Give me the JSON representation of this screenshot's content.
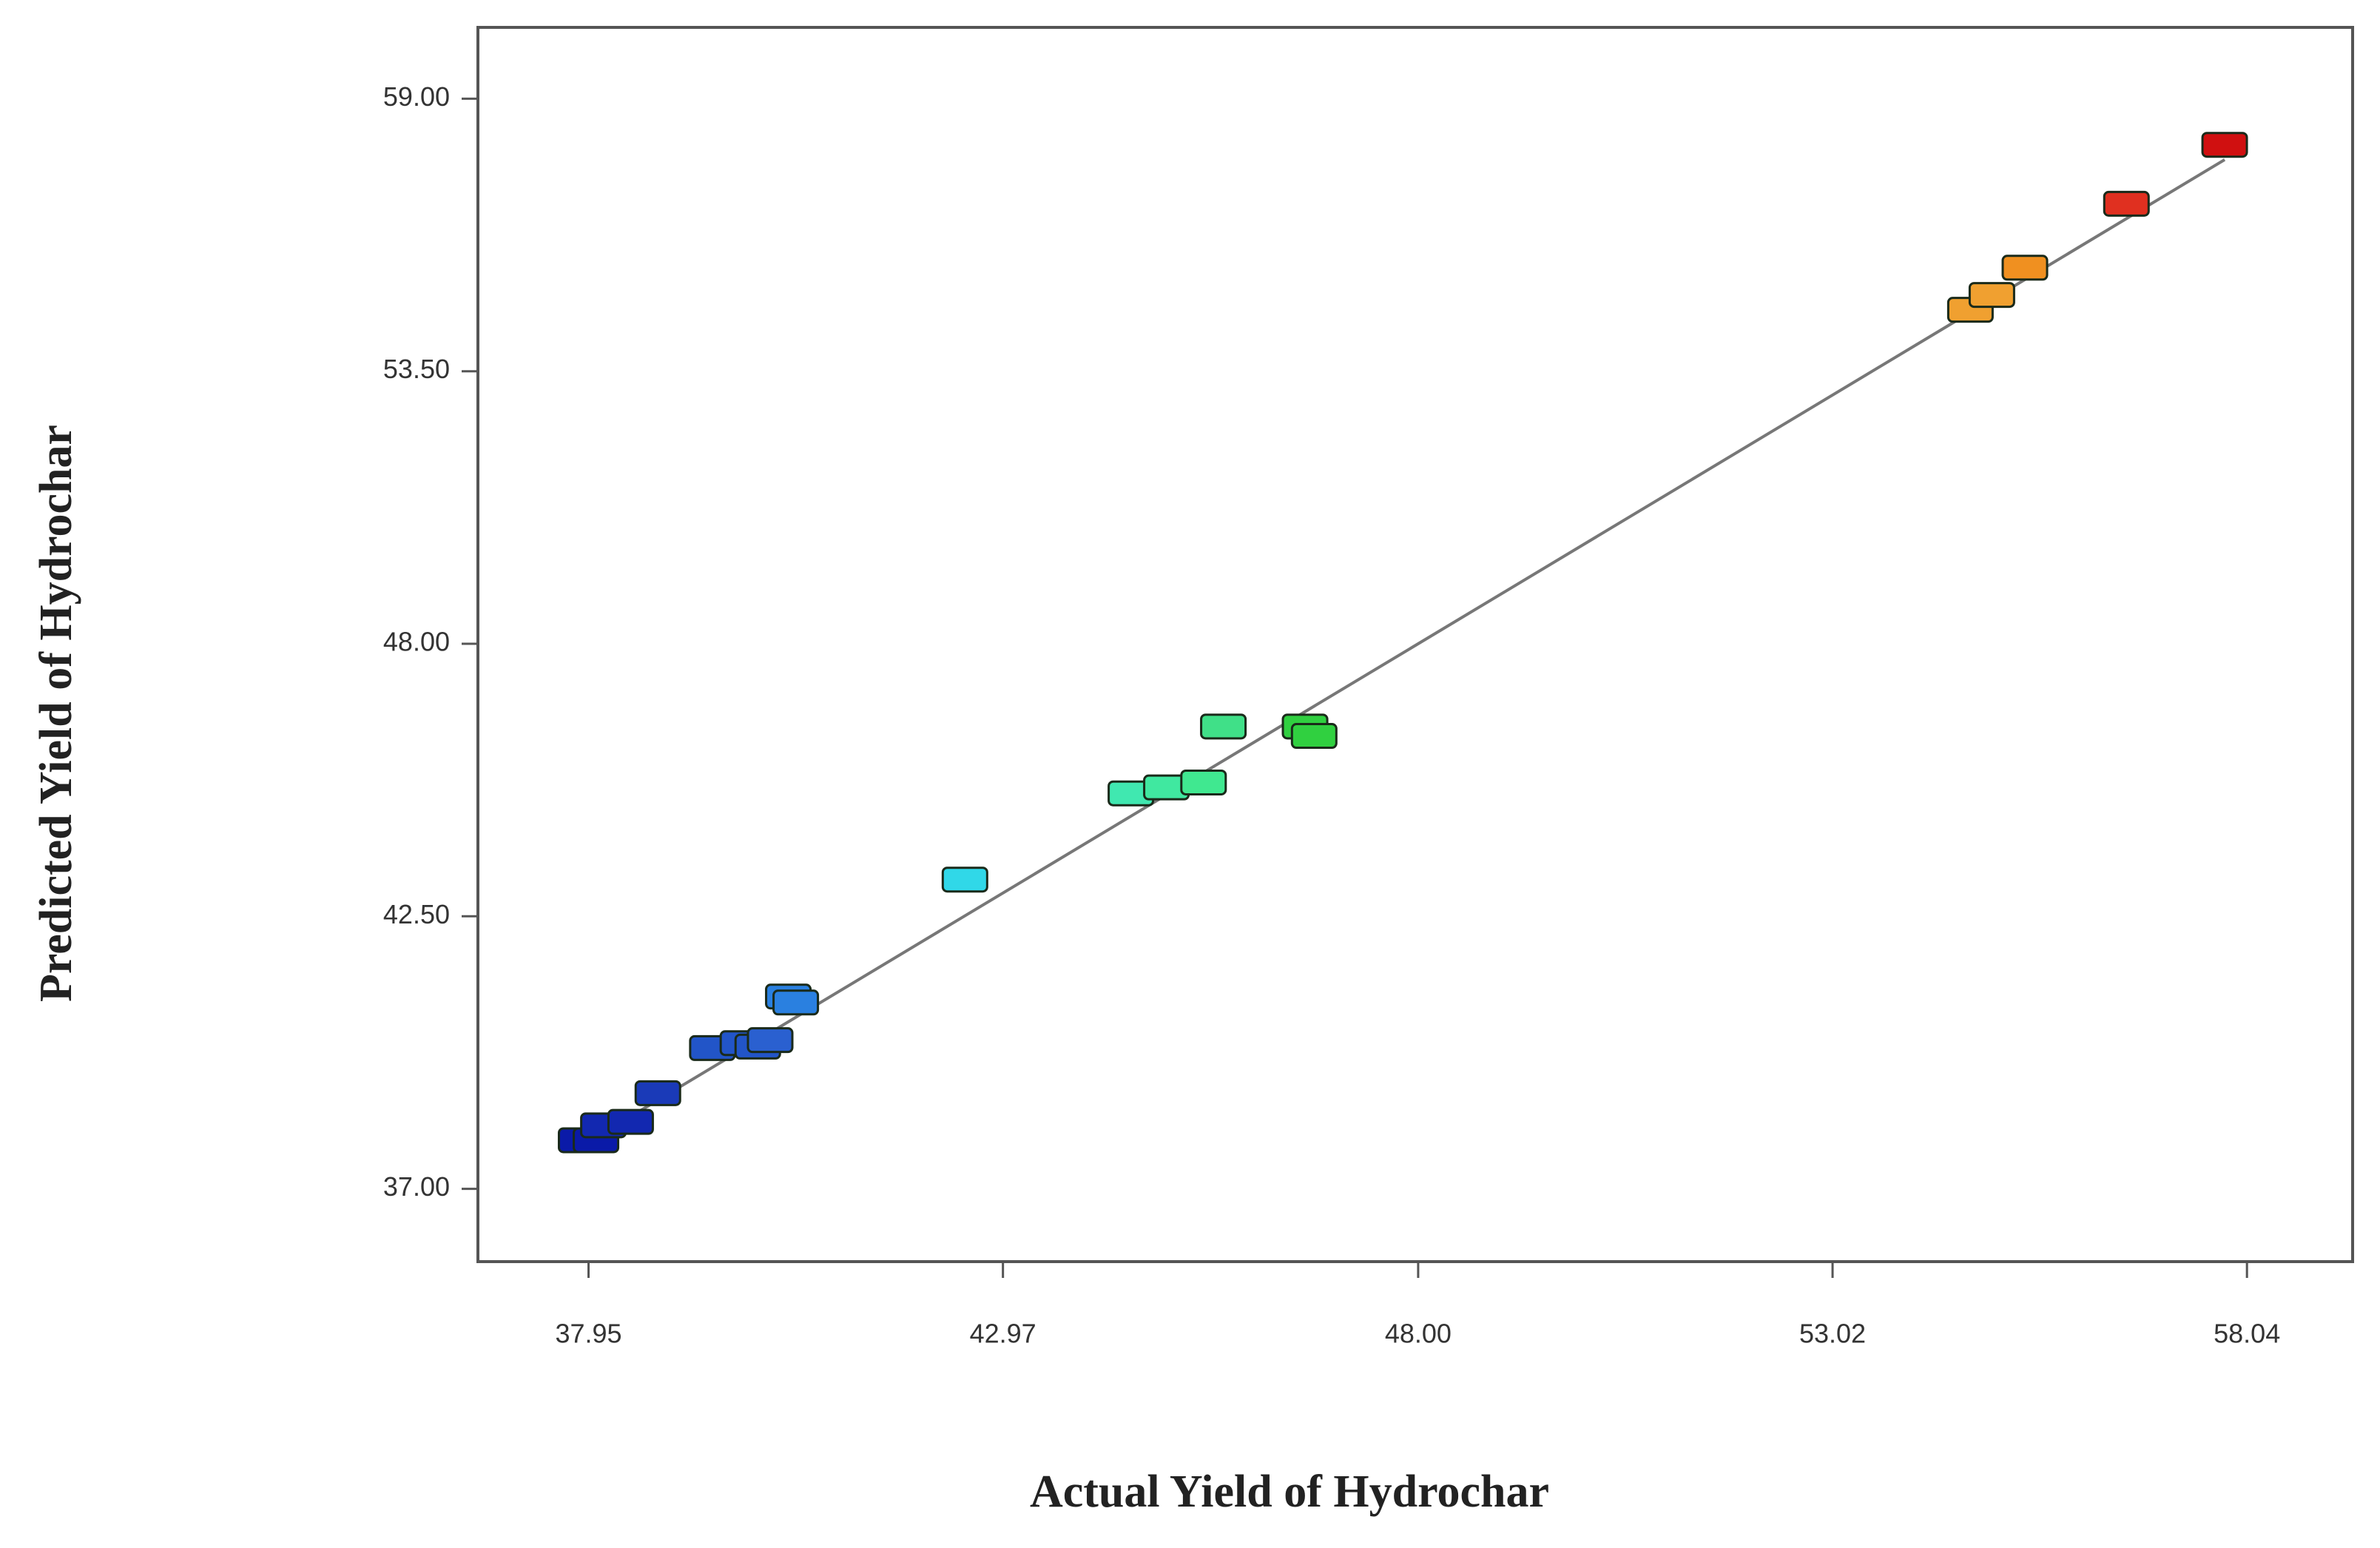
{
  "chart_data": {
    "type": "scatter",
    "x_label": "Actual Yield of Hydrochar",
    "y_label": "Predicted Yield of Hydrochar",
    "x": [
      37.86,
      38.04,
      38.13,
      38.46,
      38.79,
      39.45,
      39.82,
      40.0,
      40.15,
      40.37,
      40.46,
      42.51,
      44.52,
      44.95,
      45.4,
      45.64,
      46.63,
      46.74,
      54.69,
      54.95,
      55.35,
      56.58,
      57.77
    ],
    "values": [
      37.98,
      37.98,
      38.28,
      38.35,
      38.93,
      39.84,
      39.94,
      39.87,
      40.0,
      40.88,
      40.76,
      43.24,
      44.98,
      45.1,
      45.2,
      46.33,
      46.33,
      46.14,
      54.74,
      55.04,
      55.59,
      56.88,
      58.07
    ],
    "colors": [
      "#0a1aa8",
      "#0a1aa8",
      "#1228b0",
      "#1228b0",
      "#1a3ab8",
      "#2255c8",
      "#2255c8",
      "#2255c8",
      "#2a60d0",
      "#2a80e0",
      "#2a80e0",
      "#30d8e8",
      "#40e8b0",
      "#40e8a0",
      "#40e890",
      "#40e088",
      "#30d040",
      "#30d040",
      "#f0a030",
      "#f0a030",
      "#f09020",
      "#e03020",
      "#d01010"
    ],
    "xlim": [
      36.61,
      59.32
    ],
    "ylim": [
      35.53,
      60.44
    ],
    "xticks": [
      {
        "value": 37.95,
        "label": "37.95"
      },
      {
        "value": 42.97,
        "label": "42.97"
      },
      {
        "value": 48.0,
        "label": "48.00"
      },
      {
        "value": 53.02,
        "label": "53.02"
      },
      {
        "value": 58.04,
        "label": "58.04"
      }
    ],
    "yticks": [
      {
        "value": 37.0,
        "label": "37.00"
      },
      {
        "value": 42.5,
        "label": "42.50"
      },
      {
        "value": 48.0,
        "label": "48.00"
      },
      {
        "value": 53.5,
        "label": "53.50"
      },
      {
        "value": 59.0,
        "label": "59.00"
      }
    ],
    "fit_line": true
  }
}
